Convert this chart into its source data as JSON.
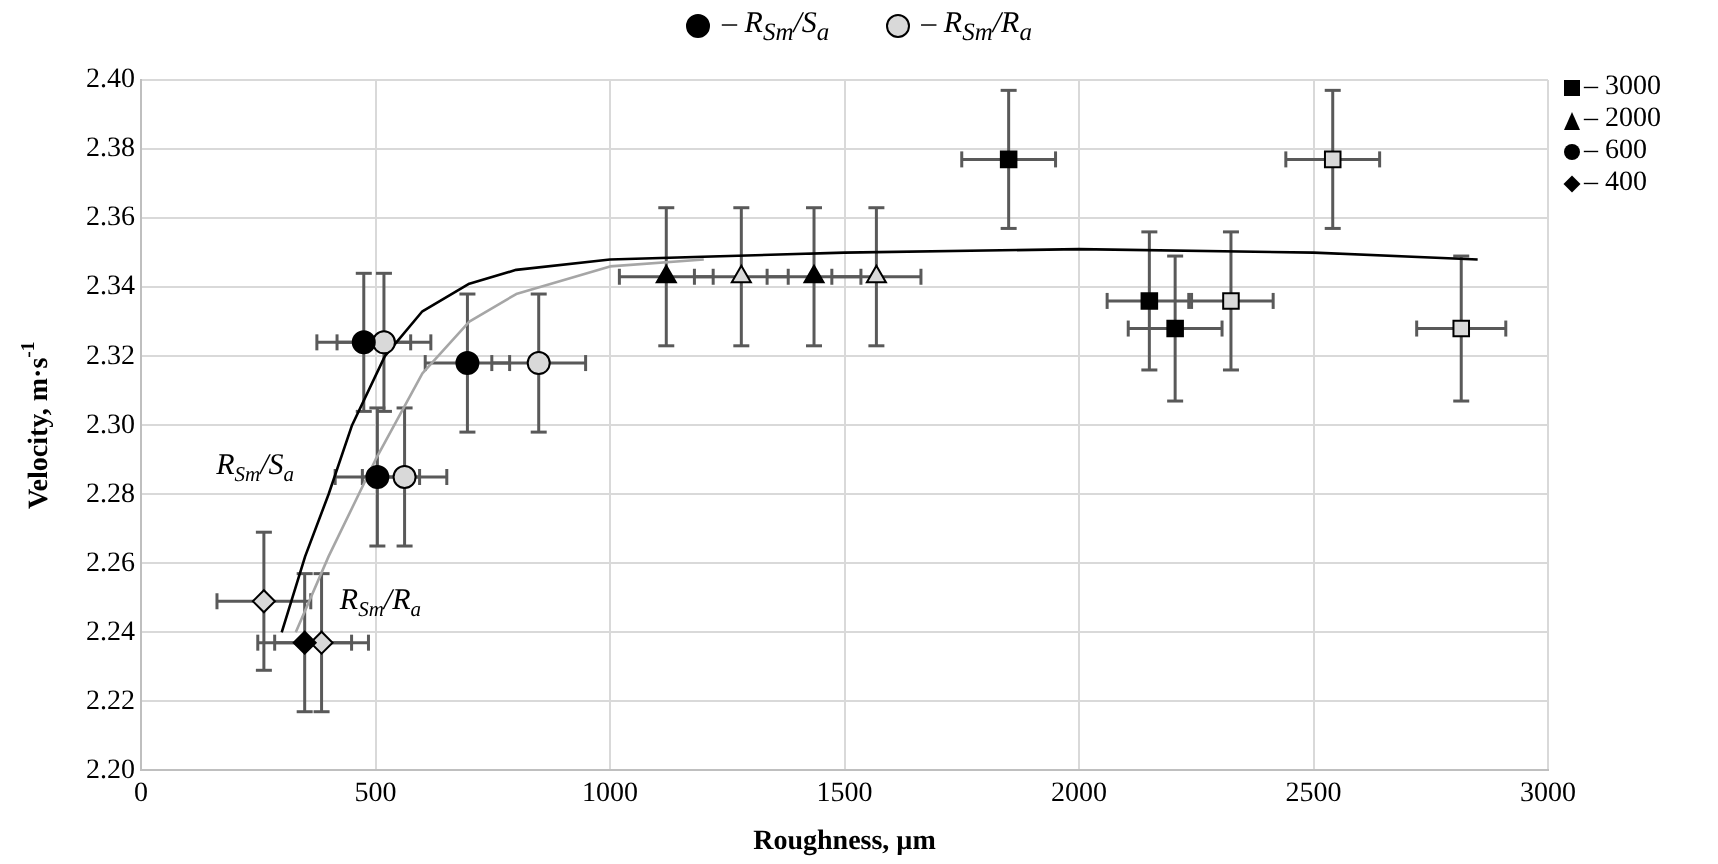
{
  "chart_data": {
    "type": "scatter",
    "xlabel": "Roughness, µm",
    "ylabel": "Velocity, m·s$^{-1}$",
    "xlim": [
      0,
      3000
    ],
    "xticks": [
      0,
      500,
      1000,
      1500,
      2000,
      2500,
      3000
    ],
    "ylim": [
      2.2,
      2.4
    ],
    "yticks": [
      {
        "value": 2.2,
        "label": "2.20"
      },
      {
        "value": 2.22,
        "label": "2.22"
      },
      {
        "value": 2.24,
        "label": "2.24"
      },
      {
        "value": 2.26,
        "label": "2.26"
      },
      {
        "value": 2.28,
        "label": "2.28"
      },
      {
        "value": 2.3,
        "label": "2.30"
      },
      {
        "value": 2.32,
        "label": "2.32"
      },
      {
        "value": 2.34,
        "label": "2.34"
      },
      {
        "value": 2.36,
        "label": "2.36"
      },
      {
        "value": 2.38,
        "label": "2.38"
      },
      {
        "value": 2.4,
        "label": "2.40"
      }
    ],
    "grid": true,
    "legend": "top",
    "series": [
      {
        "type": "scatter",
        "name": "– R$_{Sm}$/S$_{a}$",
        "color": "#000000",
        "x": [
          1850,
          2150,
          2205,
          1120,
          1435,
          475,
          696,
          504,
          349
        ],
        "values": [
          2.377,
          2.336,
          2.328,
          2.343,
          2.343,
          2.324,
          2.318,
          2.285,
          2.237
        ],
        "errors": [
          0.02,
          0.02,
          0.021,
          0.02,
          0.02,
          0.02,
          0.02,
          0.02,
          0.02
        ],
        "xerrors": [
          100,
          90,
          100,
          100,
          100,
          100,
          90,
          90,
          100
        ],
        "marker": [
          "square",
          "square",
          "square",
          "triangle",
          "triangle",
          "circle",
          "circle",
          "circle",
          "diamond"
        ]
      },
      {
        "type": "scatter",
        "name": "– R$_{Sm}$/R$_{a}$",
        "color": "#d9d9d9",
        "x": [
          2541,
          2324,
          2815,
          1280,
          1568,
          518,
          848,
          562,
          262,
          385
        ],
        "values": [
          2.377,
          2.336,
          2.328,
          2.343,
          2.343,
          2.324,
          2.318,
          2.285,
          2.249,
          2.237
        ],
        "errors": [
          0.02,
          0.02,
          0.021,
          0.02,
          0.02,
          0.02,
          0.02,
          0.02,
          0.02,
          0.02
        ],
        "xerrors": [
          100,
          90,
          95,
          100,
          95,
          100,
          100,
          90,
          100,
          100
        ],
        "marker": [
          "square",
          "square",
          "square",
          "triangle",
          "triangle",
          "circle",
          "circle",
          "circle",
          "diamond",
          "diamond"
        ]
      },
      {
        "type": "line",
        "color": "#000000",
        "marker": "none",
        "x": [
          300,
          350,
          400,
          450,
          520,
          600,
          700,
          800,
          1000,
          1500,
          2000,
          2500,
          2850
        ],
        "values": [
          2.24,
          2.262,
          2.28,
          2.3,
          2.32,
          2.333,
          2.341,
          2.345,
          2.348,
          2.35,
          2.351,
          2.35,
          2.348
        ]
      },
      {
        "type": "line",
        "color": "#a6a6a6",
        "marker": "none",
        "x": [
          330,
          400,
          500,
          600,
          700,
          800,
          1000,
          1200
        ],
        "values": [
          2.24,
          2.262,
          2.29,
          2.315,
          2.33,
          2.338,
          2.346,
          2.348
        ]
      }
    ],
    "annotations": [
      {
        "text": "R$_{Sm}$/S$_{a}$",
        "x": 420,
        "y": 2.288
      },
      {
        "text": "R$_{Sm}$/R$_{a}$",
        "x": 360,
        "y": 2.249
      },
      "– 3000",
      "– 2000",
      "– 600",
      "– 400"
    ]
  }
}
